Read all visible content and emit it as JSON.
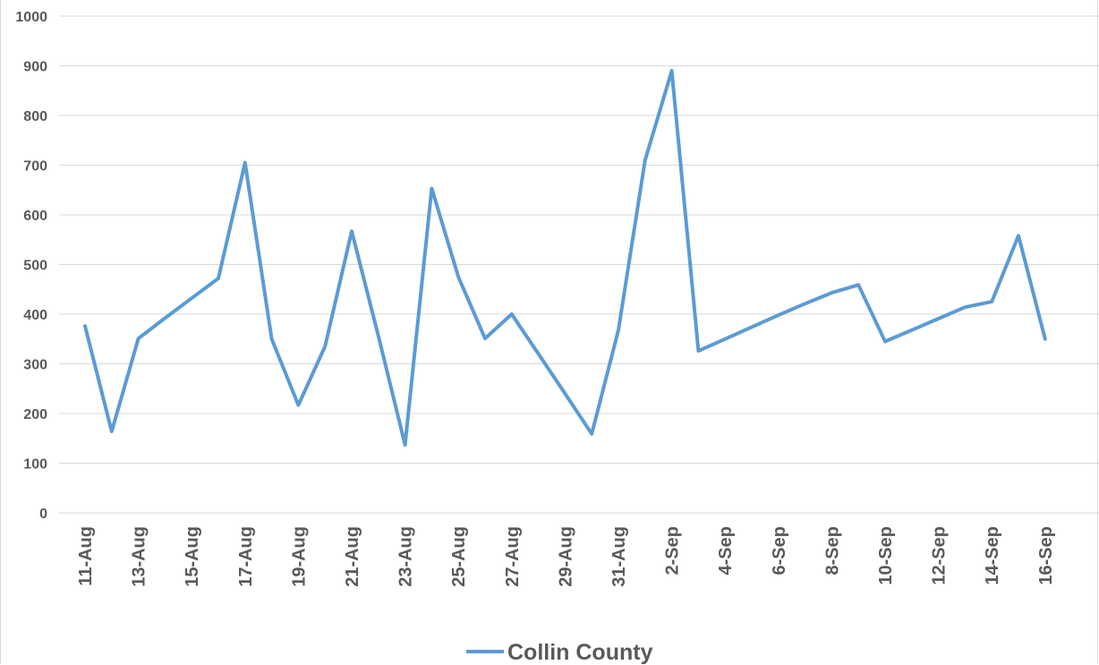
{
  "chart_data": {
    "type": "line",
    "title": "",
    "xlabel": "",
    "ylabel": "",
    "ylim": [
      0,
      1000
    ],
    "y_ticks": [
      "0",
      "100",
      "200",
      "300",
      "400",
      "500",
      "600",
      "700",
      "800",
      "900",
      "1000"
    ],
    "grid": "horizontal",
    "legend": "bottom",
    "x_dates": [
      "11-Aug",
      "12-Aug",
      "13-Aug",
      "14-Aug",
      "15-Aug",
      "16-Aug",
      "17-Aug",
      "18-Aug",
      "19-Aug",
      "20-Aug",
      "21-Aug",
      "22-Aug",
      "23-Aug",
      "24-Aug",
      "25-Aug",
      "26-Aug",
      "27-Aug",
      "28-Aug",
      "29-Aug",
      "30-Aug",
      "31-Aug",
      "1-Sep",
      "2-Sep",
      "3-Sep",
      "4-Sep",
      "5-Sep",
      "6-Sep",
      "7-Sep",
      "8-Sep",
      "9-Sep",
      "10-Sep",
      "11-Sep",
      "12-Sep",
      "13-Sep",
      "14-Sep",
      "15-Sep",
      "16-Sep"
    ],
    "x_tick_labels": [
      "11-Aug",
      "13-Aug",
      "15-Aug",
      "17-Aug",
      "19-Aug",
      "21-Aug",
      "23-Aug",
      "25-Aug",
      "27-Aug",
      "29-Aug",
      "31-Aug",
      "2-Sep",
      "4-Sep",
      "6-Sep",
      "8-Sep",
      "10-Sep",
      "12-Sep",
      "14-Sep",
      "16-Sep"
    ],
    "series": [
      {
        "name": "Collin County",
        "color": "#5b9bd5",
        "values": [
          376,
          164,
          351,
          392,
          432,
          472,
          705,
          350,
          217,
          335,
          567,
          356,
          137,
          653,
          475,
          351,
          400,
          320,
          240,
          159,
          368,
          710,
          890,
          326,
          350,
          374,
          398,
          421,
          443,
          459,
          345,
          368,
          391,
          414,
          425,
          558,
          350
        ]
      }
    ]
  }
}
